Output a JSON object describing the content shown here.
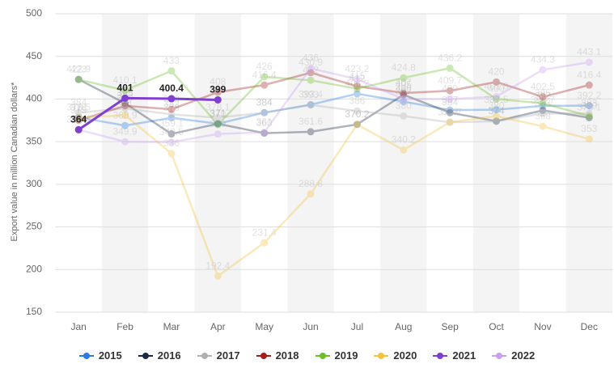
{
  "chart_data": {
    "type": "line",
    "y_label": "Export value in million Canadian dollars*",
    "categories": [
      "Jan",
      "Feb",
      "Mar",
      "Apr",
      "May",
      "Jun",
      "Jul",
      "Aug",
      "Sep",
      "Oct",
      "Nov",
      "Dec"
    ],
    "ylim": [
      150,
      500
    ],
    "yticks": [
      150,
      200,
      250,
      300,
      350,
      400,
      450,
      500
    ],
    "grid": true,
    "series": [
      {
        "name": "2015",
        "color": "#2a7be4",
        "values": [
          378.5,
          368.9,
          378,
          371,
          384,
          393.4,
          406.2,
          397,
          387,
          387.5,
          392,
          392.2
        ]
      },
      {
        "name": "2016",
        "color": "#1b2a44",
        "values": [
          423,
          395,
          359.1,
          371,
          360,
          361.6,
          370.2,
          405,
          384,
          374,
          386.7,
          378.1
        ]
      },
      {
        "name": "2017",
        "color": "#b0b0b0",
        "values": [
          384,
          389,
          382,
          378.1,
          384,
          393,
          386,
          380,
          372.7,
          374,
          383,
          383
        ]
      },
      {
        "name": "2018",
        "color": "#a31d1d",
        "values": [
          375,
          392,
          388,
          408,
          416.4,
          430.9,
          415,
          407,
          409.7,
          420,
          402.5,
          416.4
        ]
      },
      {
        "name": "2019",
        "color": "#6cbf2a",
        "values": [
          422.9,
          410.1,
          433,
          370,
          426,
          422,
          412,
          424.8,
          436.2,
          400,
          395,
          380
        ]
      },
      {
        "name": "2020",
        "color": "#f2c33c",
        "values": [
          378,
          381,
          336,
          192.4,
          231.4,
          288.8,
          370.2,
          340.2,
          373,
          380,
          368,
          353
        ]
      },
      {
        "name": "2021",
        "color": "#7f3fd0",
        "highlighted": true,
        "values": [
          364,
          401,
          400.4,
          399,
          null,
          null,
          null,
          null,
          null,
          null,
          null,
          null
        ]
      },
      {
        "name": "2022",
        "color": "#c9a0f0",
        "values": [
          364.1,
          349.9,
          349.5,
          359,
          361,
          436,
          423.2,
          400,
          400,
          402.8,
          434.3,
          443.1
        ]
      }
    ]
  }
}
